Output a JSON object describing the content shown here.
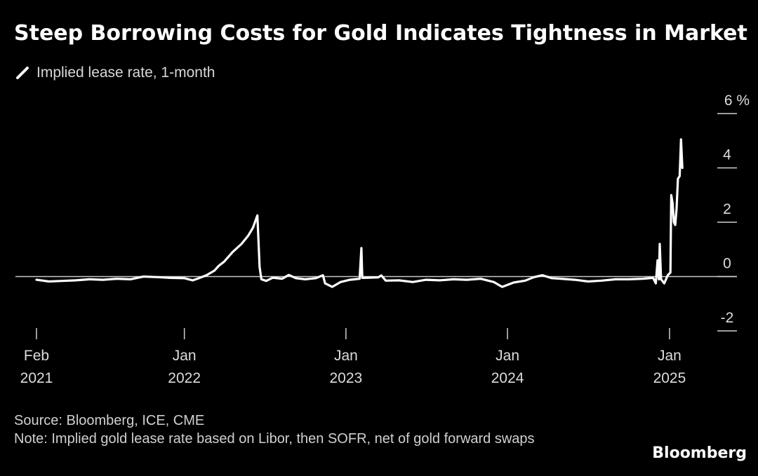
{
  "chart_data": {
    "type": "line",
    "title": "Steep Borrowing Costs for Gold Indicates Tightness in Market",
    "xlabel": "",
    "ylabel": "",
    "y_unit": "%",
    "ylim": [
      -2,
      6
    ],
    "y_ticks": [
      6,
      4,
      2,
      0,
      -2
    ],
    "y_tick_labels": [
      "6 %",
      "4",
      "2",
      "0",
      "-2"
    ],
    "x_range": [
      "2021-02-01",
      "2025-02-05"
    ],
    "x_ticks": [
      {
        "date": "2021-02-01",
        "line1": "Feb",
        "line2": "2021"
      },
      {
        "date": "2022-01-01",
        "line1": "Jan",
        "line2": "2022"
      },
      {
        "date": "2023-01-01",
        "line1": "Jan",
        "line2": "2023"
      },
      {
        "date": "2024-01-01",
        "line1": "Jan",
        "line2": "2024"
      },
      {
        "date": "2025-01-01",
        "line1": "Jan",
        "line2": "2025"
      }
    ],
    "reference_line": 0,
    "grid": false,
    "legend_position": "top-left",
    "series": [
      {
        "name": "Implied lease rate, 1-month",
        "color": "#ffffff",
        "points": [
          [
            "2021-02-01",
            -0.12
          ],
          [
            "2021-03-01",
            -0.18
          ],
          [
            "2021-04-01",
            -0.16
          ],
          [
            "2021-05-01",
            -0.14
          ],
          [
            "2021-06-01",
            -0.1
          ],
          [
            "2021-07-01",
            -0.12
          ],
          [
            "2021-08-01",
            -0.08
          ],
          [
            "2021-09-01",
            -0.1
          ],
          [
            "2021-10-01",
            0.0
          ],
          [
            "2021-11-01",
            -0.02
          ],
          [
            "2021-12-01",
            -0.05
          ],
          [
            "2022-01-01",
            -0.06
          ],
          [
            "2022-01-20",
            -0.14
          ],
          [
            "2022-02-01",
            -0.07
          ],
          [
            "2022-02-20",
            0.05
          ],
          [
            "2022-03-10",
            0.22
          ],
          [
            "2022-03-20",
            0.4
          ],
          [
            "2022-04-01",
            0.55
          ],
          [
            "2022-04-20",
            0.9
          ],
          [
            "2022-05-10",
            1.2
          ],
          [
            "2022-05-25",
            1.5
          ],
          [
            "2022-06-05",
            1.8
          ],
          [
            "2022-06-15",
            2.25
          ],
          [
            "2022-06-20",
            0.35
          ],
          [
            "2022-06-24",
            -0.1
          ],
          [
            "2022-07-05",
            -0.16
          ],
          [
            "2022-07-20",
            -0.04
          ],
          [
            "2022-08-10",
            -0.08
          ],
          [
            "2022-08-25",
            0.06
          ],
          [
            "2022-09-10",
            -0.06
          ],
          [
            "2022-10-01",
            -0.1
          ],
          [
            "2022-10-25",
            -0.06
          ],
          [
            "2022-11-10",
            0.05
          ],
          [
            "2022-11-15",
            -0.25
          ],
          [
            "2022-12-01",
            -0.38
          ],
          [
            "2022-12-20",
            -0.2
          ],
          [
            "2023-01-10",
            -0.12
          ],
          [
            "2023-02-01",
            -0.08
          ],
          [
            "2023-02-05",
            1.05
          ],
          [
            "2023-02-07",
            -0.05
          ],
          [
            "2023-02-20",
            -0.04
          ],
          [
            "2023-03-15",
            -0.03
          ],
          [
            "2023-03-22",
            0.04
          ],
          [
            "2023-04-01",
            -0.15
          ],
          [
            "2023-05-01",
            -0.14
          ],
          [
            "2023-06-01",
            -0.2
          ],
          [
            "2023-07-01",
            -0.12
          ],
          [
            "2023-08-01",
            -0.14
          ],
          [
            "2023-09-01",
            -0.1
          ],
          [
            "2023-10-01",
            -0.12
          ],
          [
            "2023-11-01",
            -0.08
          ],
          [
            "2023-12-01",
            -0.2
          ],
          [
            "2023-12-20",
            -0.38
          ],
          [
            "2024-01-15",
            -0.22
          ],
          [
            "2024-02-10",
            -0.15
          ],
          [
            "2024-03-01",
            -0.02
          ],
          [
            "2024-03-20",
            0.05
          ],
          [
            "2024-04-10",
            -0.06
          ],
          [
            "2024-05-01",
            -0.08
          ],
          [
            "2024-06-01",
            -0.12
          ],
          [
            "2024-07-01",
            -0.18
          ],
          [
            "2024-08-01",
            -0.15
          ],
          [
            "2024-09-01",
            -0.1
          ],
          [
            "2024-10-01",
            -0.1
          ],
          [
            "2024-11-01",
            -0.08
          ],
          [
            "2024-11-25",
            -0.05
          ],
          [
            "2024-12-01",
            -0.25
          ],
          [
            "2024-12-05",
            0.6
          ],
          [
            "2024-12-08",
            -0.1
          ],
          [
            "2024-12-10",
            1.2
          ],
          [
            "2024-12-13",
            -0.1
          ],
          [
            "2024-12-20",
            -0.25
          ],
          [
            "2024-12-28",
            0.05
          ],
          [
            "2025-01-03",
            0.15
          ],
          [
            "2025-01-05",
            3.0
          ],
          [
            "2025-01-08",
            2.7
          ],
          [
            "2025-01-11",
            2.0
          ],
          [
            "2025-01-14",
            1.9
          ],
          [
            "2025-01-17",
            2.5
          ],
          [
            "2025-01-20",
            3.6
          ],
          [
            "2025-01-24",
            3.7
          ],
          [
            "2025-01-27",
            5.05
          ],
          [
            "2025-01-30",
            4.0
          ]
        ]
      }
    ]
  },
  "legend": {
    "label": "Implied lease rate, 1-month",
    "swatch_color": "#ffffff"
  },
  "footer": {
    "source": "Source: Bloomberg, ICE, CME",
    "note": "Note: Implied gold lease rate based on Libor, then SOFR, net of gold forward swaps"
  },
  "brand": "Bloomberg"
}
